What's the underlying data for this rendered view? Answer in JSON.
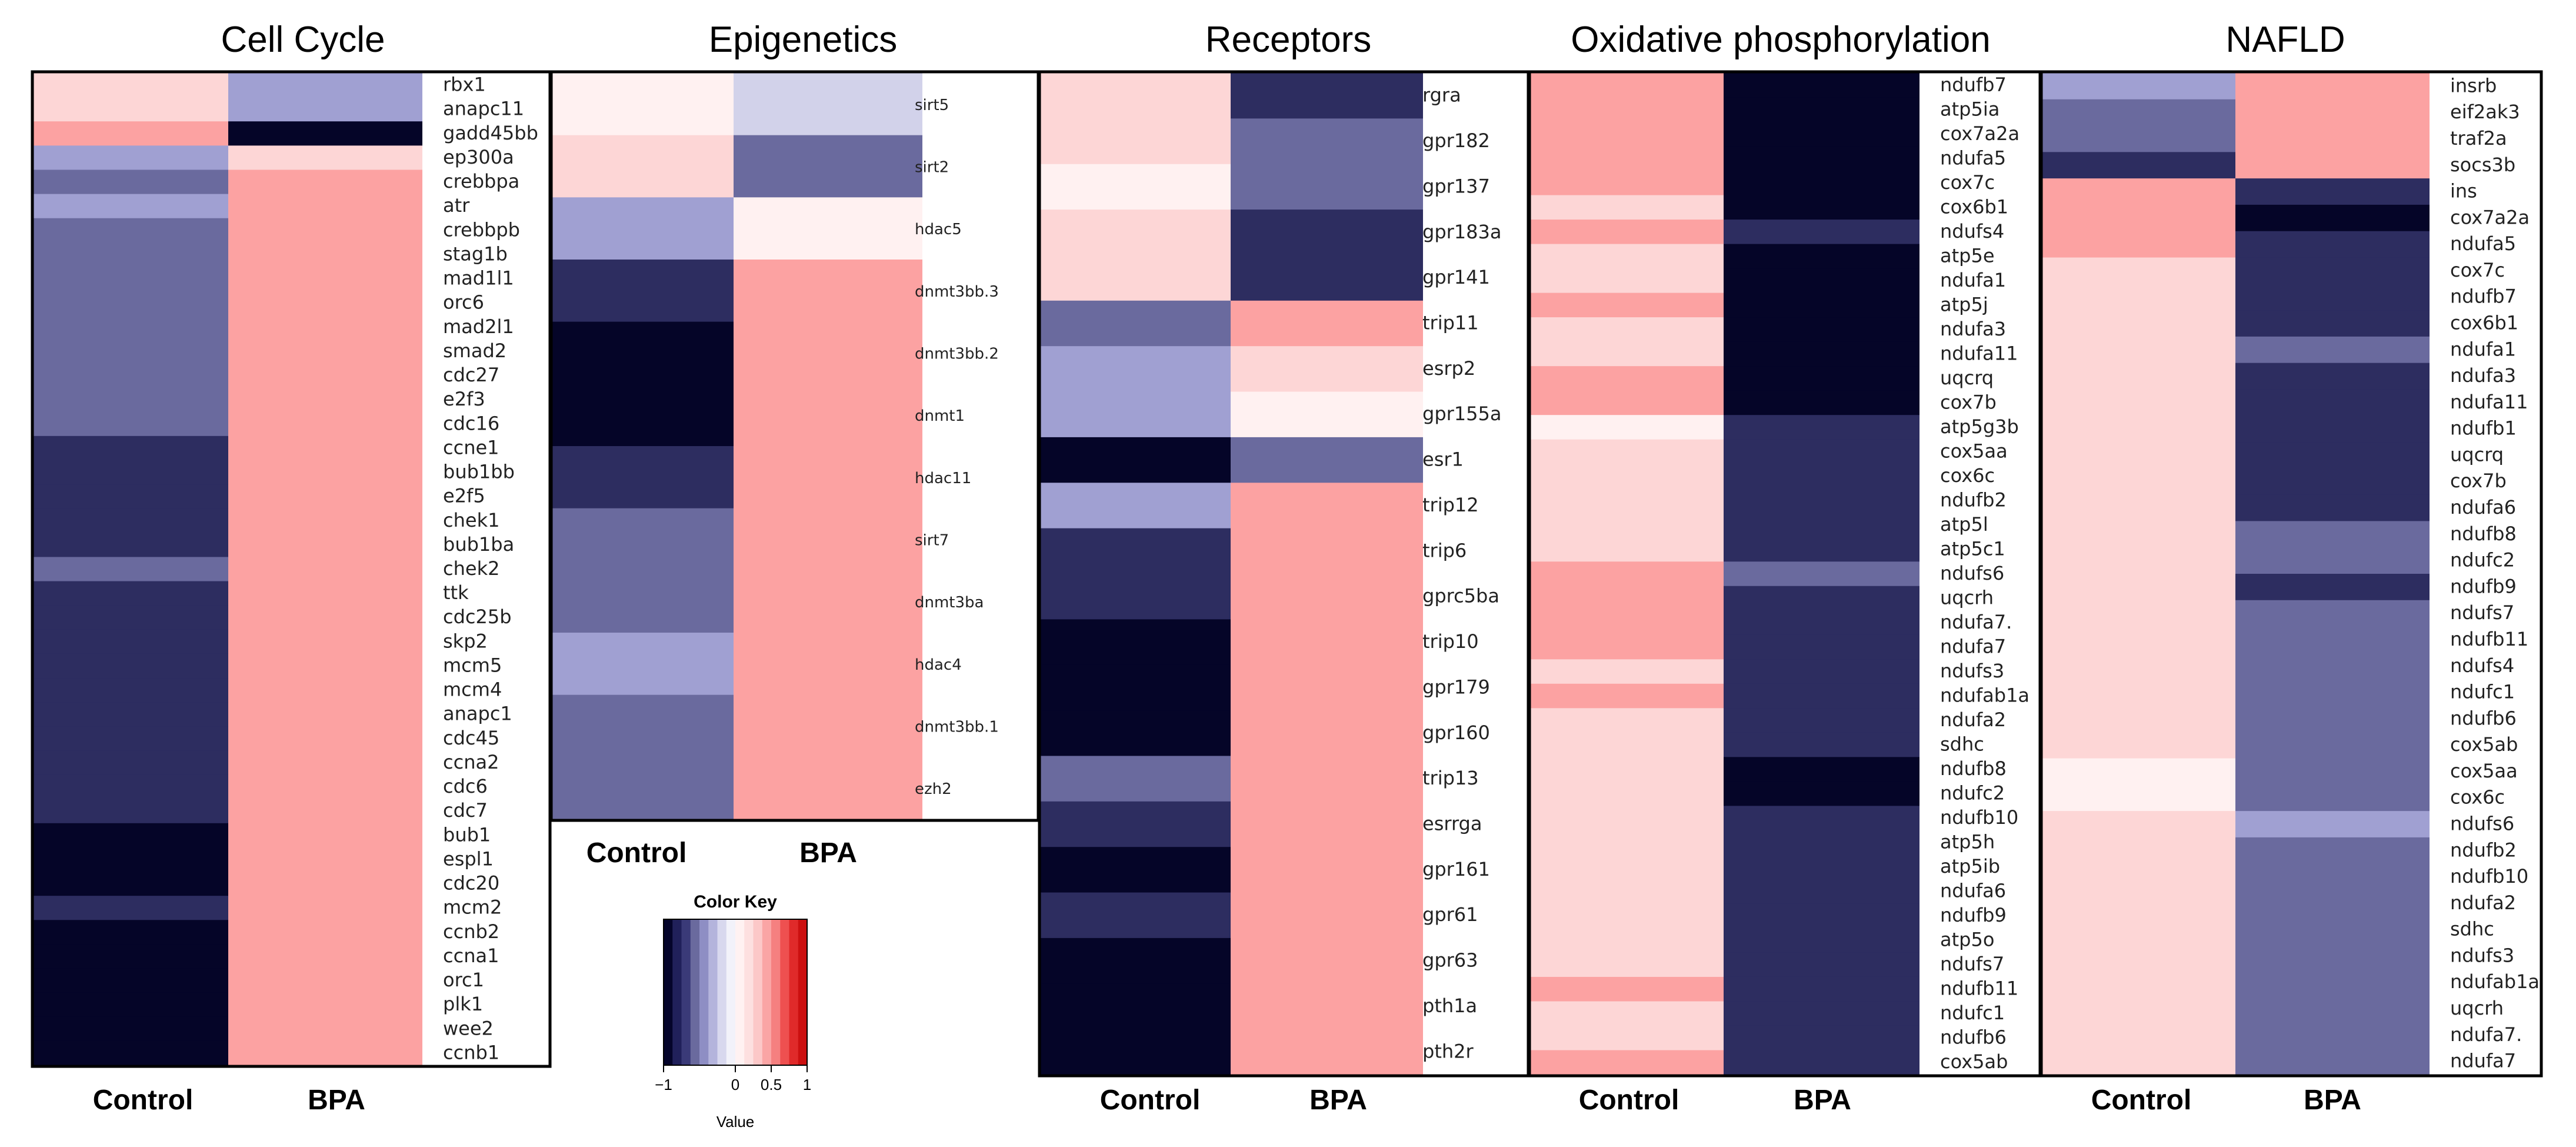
{
  "chart_data": [
    {
      "type": "heatmap",
      "title": "Cell Cycle",
      "columns": [
        "Control",
        "BPA"
      ],
      "rows": [
        "rbx1",
        "anapc11",
        "gadd45bb",
        "ep300a",
        "crebbpa",
        "atr",
        "crebbpb",
        "stag1b",
        "mad1l1",
        "orc6",
        "mad2l1",
        "smad2",
        "cdc27",
        "e2f3",
        "cdc16",
        "ccne1",
        "bub1bb",
        "e2f5",
        "chek1",
        "bub1ba",
        "chek2",
        "ttk",
        "cdc25b",
        "skp2",
        "mcm5",
        "mcm4",
        "anapc1",
        "cdc45",
        "ccna2",
        "cdc6",
        "cdc7",
        "bub1",
        "espl1",
        "cdc20",
        "mcm2",
        "ccnb2",
        "ccna1",
        "orc1",
        "plk1",
        "wee2",
        "ccnb1"
      ],
      "values": [
        [
          0.2,
          -0.4
        ],
        [
          0.2,
          -0.4
        ],
        [
          0.6,
          -1.0
        ],
        [
          -0.4,
          0.2
        ],
        [
          -0.6,
          0.6
        ],
        [
          -0.4,
          0.6
        ],
        [
          -0.6,
          0.6
        ],
        [
          -0.6,
          0.6
        ],
        [
          -0.6,
          0.6
        ],
        [
          -0.6,
          0.6
        ],
        [
          -0.6,
          0.6
        ],
        [
          -0.6,
          0.6
        ],
        [
          -0.6,
          0.6
        ],
        [
          -0.6,
          0.6
        ],
        [
          -0.6,
          0.6
        ],
        [
          -0.8,
          0.6
        ],
        [
          -0.8,
          0.6
        ],
        [
          -0.8,
          0.6
        ],
        [
          -0.8,
          0.6
        ],
        [
          -0.8,
          0.6
        ],
        [
          -0.6,
          0.6
        ],
        [
          -0.8,
          0.6
        ],
        [
          -0.8,
          0.6
        ],
        [
          -0.8,
          0.6
        ],
        [
          -0.8,
          0.6
        ],
        [
          -0.8,
          0.6
        ],
        [
          -0.8,
          0.6
        ],
        [
          -0.8,
          0.6
        ],
        [
          -0.8,
          0.6
        ],
        [
          -0.8,
          0.6
        ],
        [
          -0.8,
          0.6
        ],
        [
          -1.0,
          0.6
        ],
        [
          -1.0,
          0.6
        ],
        [
          -1.0,
          0.6
        ],
        [
          -0.8,
          0.6
        ],
        [
          -1.0,
          0.6
        ],
        [
          -1.0,
          0.6
        ],
        [
          -1.0,
          0.6
        ],
        [
          -1.0,
          0.6
        ],
        [
          -1.0,
          0.6
        ],
        [
          -1.0,
          0.6
        ]
      ]
    },
    {
      "type": "heatmap",
      "title": "Epigenetics",
      "columns": [
        "Control",
        "BPA"
      ],
      "rows": [
        "sirt5",
        "sirt2",
        "hdac5",
        "dnmt3bb.3",
        "dnmt3bb.2",
        "dnmt1",
        "hdac11",
        "sirt7",
        "dnmt3ba",
        "hdac4",
        "dnmt3bb.1",
        "ezh2"
      ],
      "values": [
        [
          0.05,
          -0.2
        ],
        [
          0.2,
          -0.6
        ],
        [
          -0.4,
          0.05
        ],
        [
          -0.8,
          0.6
        ],
        [
          -1.0,
          0.6
        ],
        [
          -1.0,
          0.6
        ],
        [
          -0.8,
          0.6
        ],
        [
          -0.6,
          0.6
        ],
        [
          -0.6,
          0.6
        ],
        [
          -0.4,
          0.6
        ],
        [
          -0.6,
          0.6
        ],
        [
          -0.6,
          0.6
        ]
      ]
    },
    {
      "type": "heatmap",
      "title": "Receptors",
      "columns": [
        "Control",
        "BPA"
      ],
      "rows": [
        "rgra",
        "gpr182",
        "gpr137",
        "gpr183a",
        "gpr141",
        "trip11",
        "esrp2",
        "gpr155a",
        "esr1",
        "trip12",
        "trip6",
        "gprc5ba",
        "trip10",
        "gpr179",
        "gpr160",
        "trip13",
        "esrrga",
        "gpr161",
        "gpr61",
        "gpr63",
        "pth1a",
        "pth2r"
      ],
      "values": [
        [
          0.2,
          -0.8
        ],
        [
          0.2,
          -0.6
        ],
        [
          0.05,
          -0.6
        ],
        [
          0.2,
          -0.8
        ],
        [
          0.2,
          -0.8
        ],
        [
          -0.6,
          0.6
        ],
        [
          -0.4,
          0.2
        ],
        [
          -0.4,
          0.05
        ],
        [
          -1.0,
          -0.6
        ],
        [
          -0.4,
          0.6
        ],
        [
          -0.8,
          0.6
        ],
        [
          -0.8,
          0.6
        ],
        [
          -1.0,
          0.6
        ],
        [
          -1.0,
          0.6
        ],
        [
          -1.0,
          0.6
        ],
        [
          -0.6,
          0.6
        ],
        [
          -0.8,
          0.6
        ],
        [
          -1.0,
          0.6
        ],
        [
          -0.8,
          0.6
        ],
        [
          -1.0,
          0.6
        ],
        [
          -1.0,
          0.6
        ],
        [
          -1.0,
          0.6
        ]
      ]
    },
    {
      "type": "heatmap",
      "title": "Oxidative phosphorylation",
      "columns": [
        "Control",
        "BPA"
      ],
      "rows": [
        "ndufb7",
        "atp5ia",
        "cox7a2a",
        "ndufa5",
        "cox7c",
        "cox6b1",
        "ndufs4",
        "atp5e",
        "ndufa1",
        "atp5j",
        "ndufa3",
        "ndufa11",
        "uqcrq",
        "cox7b",
        "atp5g3b",
        "cox5aa",
        "cox6c",
        "ndufb2",
        "atp5l",
        "atp5c1",
        "ndufs6",
        "uqcrh",
        "ndufa7.",
        "ndufa7",
        "ndufs3",
        "ndufab1a",
        "ndufa2",
        "sdhc",
        "ndufb8",
        "ndufc2",
        "ndufb10",
        "atp5h",
        "atp5ib",
        "ndufa6",
        "ndufb9",
        "atp5o",
        "ndufs7",
        "ndufb11",
        "ndufc1",
        "ndufb6",
        "cox5ab"
      ],
      "values": [
        [
          0.6,
          -1.0
        ],
        [
          0.6,
          -1.0
        ],
        [
          0.6,
          -1.0
        ],
        [
          0.6,
          -1.0
        ],
        [
          0.6,
          -1.0
        ],
        [
          0.2,
          -1.0
        ],
        [
          0.6,
          -0.8
        ],
        [
          0.2,
          -1.0
        ],
        [
          0.2,
          -1.0
        ],
        [
          0.6,
          -1.0
        ],
        [
          0.2,
          -1.0
        ],
        [
          0.2,
          -1.0
        ],
        [
          0.6,
          -1.0
        ],
        [
          0.6,
          -1.0
        ],
        [
          0.05,
          -0.8
        ],
        [
          0.2,
          -0.8
        ],
        [
          0.2,
          -0.8
        ],
        [
          0.2,
          -0.8
        ],
        [
          0.2,
          -0.8
        ],
        [
          0.2,
          -0.8
        ],
        [
          0.6,
          -0.6
        ],
        [
          0.6,
          -0.8
        ],
        [
          0.6,
          -0.8
        ],
        [
          0.6,
          -0.8
        ],
        [
          0.2,
          -0.8
        ],
        [
          0.6,
          -0.8
        ],
        [
          0.2,
          -0.8
        ],
        [
          0.2,
          -0.8
        ],
        [
          0.2,
          -1.0
        ],
        [
          0.2,
          -1.0
        ],
        [
          0.2,
          -0.8
        ],
        [
          0.2,
          -0.8
        ],
        [
          0.2,
          -0.8
        ],
        [
          0.2,
          -0.8
        ],
        [
          0.2,
          -0.8
        ],
        [
          0.2,
          -0.8
        ],
        [
          0.2,
          -0.8
        ],
        [
          0.6,
          -0.8
        ],
        [
          0.2,
          -0.8
        ],
        [
          0.2,
          -0.8
        ],
        [
          0.6,
          -0.8
        ]
      ]
    },
    {
      "type": "heatmap",
      "title": "NAFLD",
      "columns": [
        "Control",
        "BPA"
      ],
      "rows": [
        "insrb",
        "eif2ak3",
        "traf2a",
        "socs3b",
        "ins",
        "cox7a2a",
        "ndufa5",
        "cox7c",
        "ndufb7",
        "cox6b1",
        "ndufa1",
        "ndufa3",
        "ndufa11",
        "ndufb1",
        "uqcrq",
        "cox7b",
        "ndufa6",
        "ndufb8",
        "ndufc2",
        "ndufb9",
        "ndufs7",
        "ndufb11",
        "ndufs4",
        "ndufc1",
        "ndufb6",
        "cox5ab",
        "cox5aa",
        "cox6c",
        "ndufs6",
        "ndufb2",
        "ndufb10",
        "ndufa2",
        "sdhc",
        "ndufs3",
        "ndufab1a",
        "uqcrh",
        "ndufa7.",
        "ndufa7"
      ],
      "values": [
        [
          -0.4,
          0.6
        ],
        [
          -0.6,
          0.6
        ],
        [
          -0.6,
          0.6
        ],
        [
          -0.8,
          0.6
        ],
        [
          0.6,
          -0.8
        ],
        [
          0.6,
          -1.0
        ],
        [
          0.6,
          -0.8
        ],
        [
          0.2,
          -0.8
        ],
        [
          0.2,
          -0.8
        ],
        [
          0.2,
          -0.8
        ],
        [
          0.2,
          -0.6
        ],
        [
          0.2,
          -0.8
        ],
        [
          0.2,
          -0.8
        ],
        [
          0.2,
          -0.8
        ],
        [
          0.2,
          -0.8
        ],
        [
          0.2,
          -0.8
        ],
        [
          0.2,
          -0.8
        ],
        [
          0.2,
          -0.6
        ],
        [
          0.2,
          -0.6
        ],
        [
          0.2,
          -0.8
        ],
        [
          0.2,
          -0.6
        ],
        [
          0.2,
          -0.6
        ],
        [
          0.2,
          -0.6
        ],
        [
          0.2,
          -0.6
        ],
        [
          0.2,
          -0.6
        ],
        [
          0.2,
          -0.6
        ],
        [
          0.05,
          -0.6
        ],
        [
          0.05,
          -0.6
        ],
        [
          0.2,
          -0.4
        ],
        [
          0.2,
          -0.6
        ],
        [
          0.2,
          -0.6
        ],
        [
          0.2,
          -0.6
        ],
        [
          0.2,
          -0.6
        ],
        [
          0.2,
          -0.6
        ],
        [
          0.2,
          -0.6
        ],
        [
          0.2,
          -0.6
        ],
        [
          0.2,
          -0.6
        ],
        [
          0.2,
          -0.6
        ]
      ]
    }
  ],
  "color_key": {
    "title": "Color Key",
    "xlabel": "Value",
    "ticks": [
      -1,
      0,
      0.5,
      1
    ],
    "tick_labels": [
      "−1",
      "0",
      "0.5",
      "1"
    ],
    "range": [
      -1,
      1
    ],
    "colors": [
      "#04042a",
      "#20205a",
      "#3a3a78",
      "#6a6a9e",
      "#8e8ec4",
      "#b4b4dc",
      "#d8d8ee",
      "#f2f2fa",
      "#fff2f2",
      "#fde0e0",
      "#fcc8c8",
      "#faa5a5",
      "#f58080",
      "#ee5050",
      "#e02a2a",
      "#cc1010"
    ]
  },
  "colors": {
    "value_-1.0": "#050528",
    "value_-0.8": "#2d2d60",
    "value_-0.6": "#6a6a9e",
    "value_-0.4": "#a0a0d2",
    "value_-0.2": "#d2d2ea",
    "value_0.05": "#fff1f1",
    "value_0.2": "#fdd6d6",
    "value_0.6": "#fca2a2"
  }
}
